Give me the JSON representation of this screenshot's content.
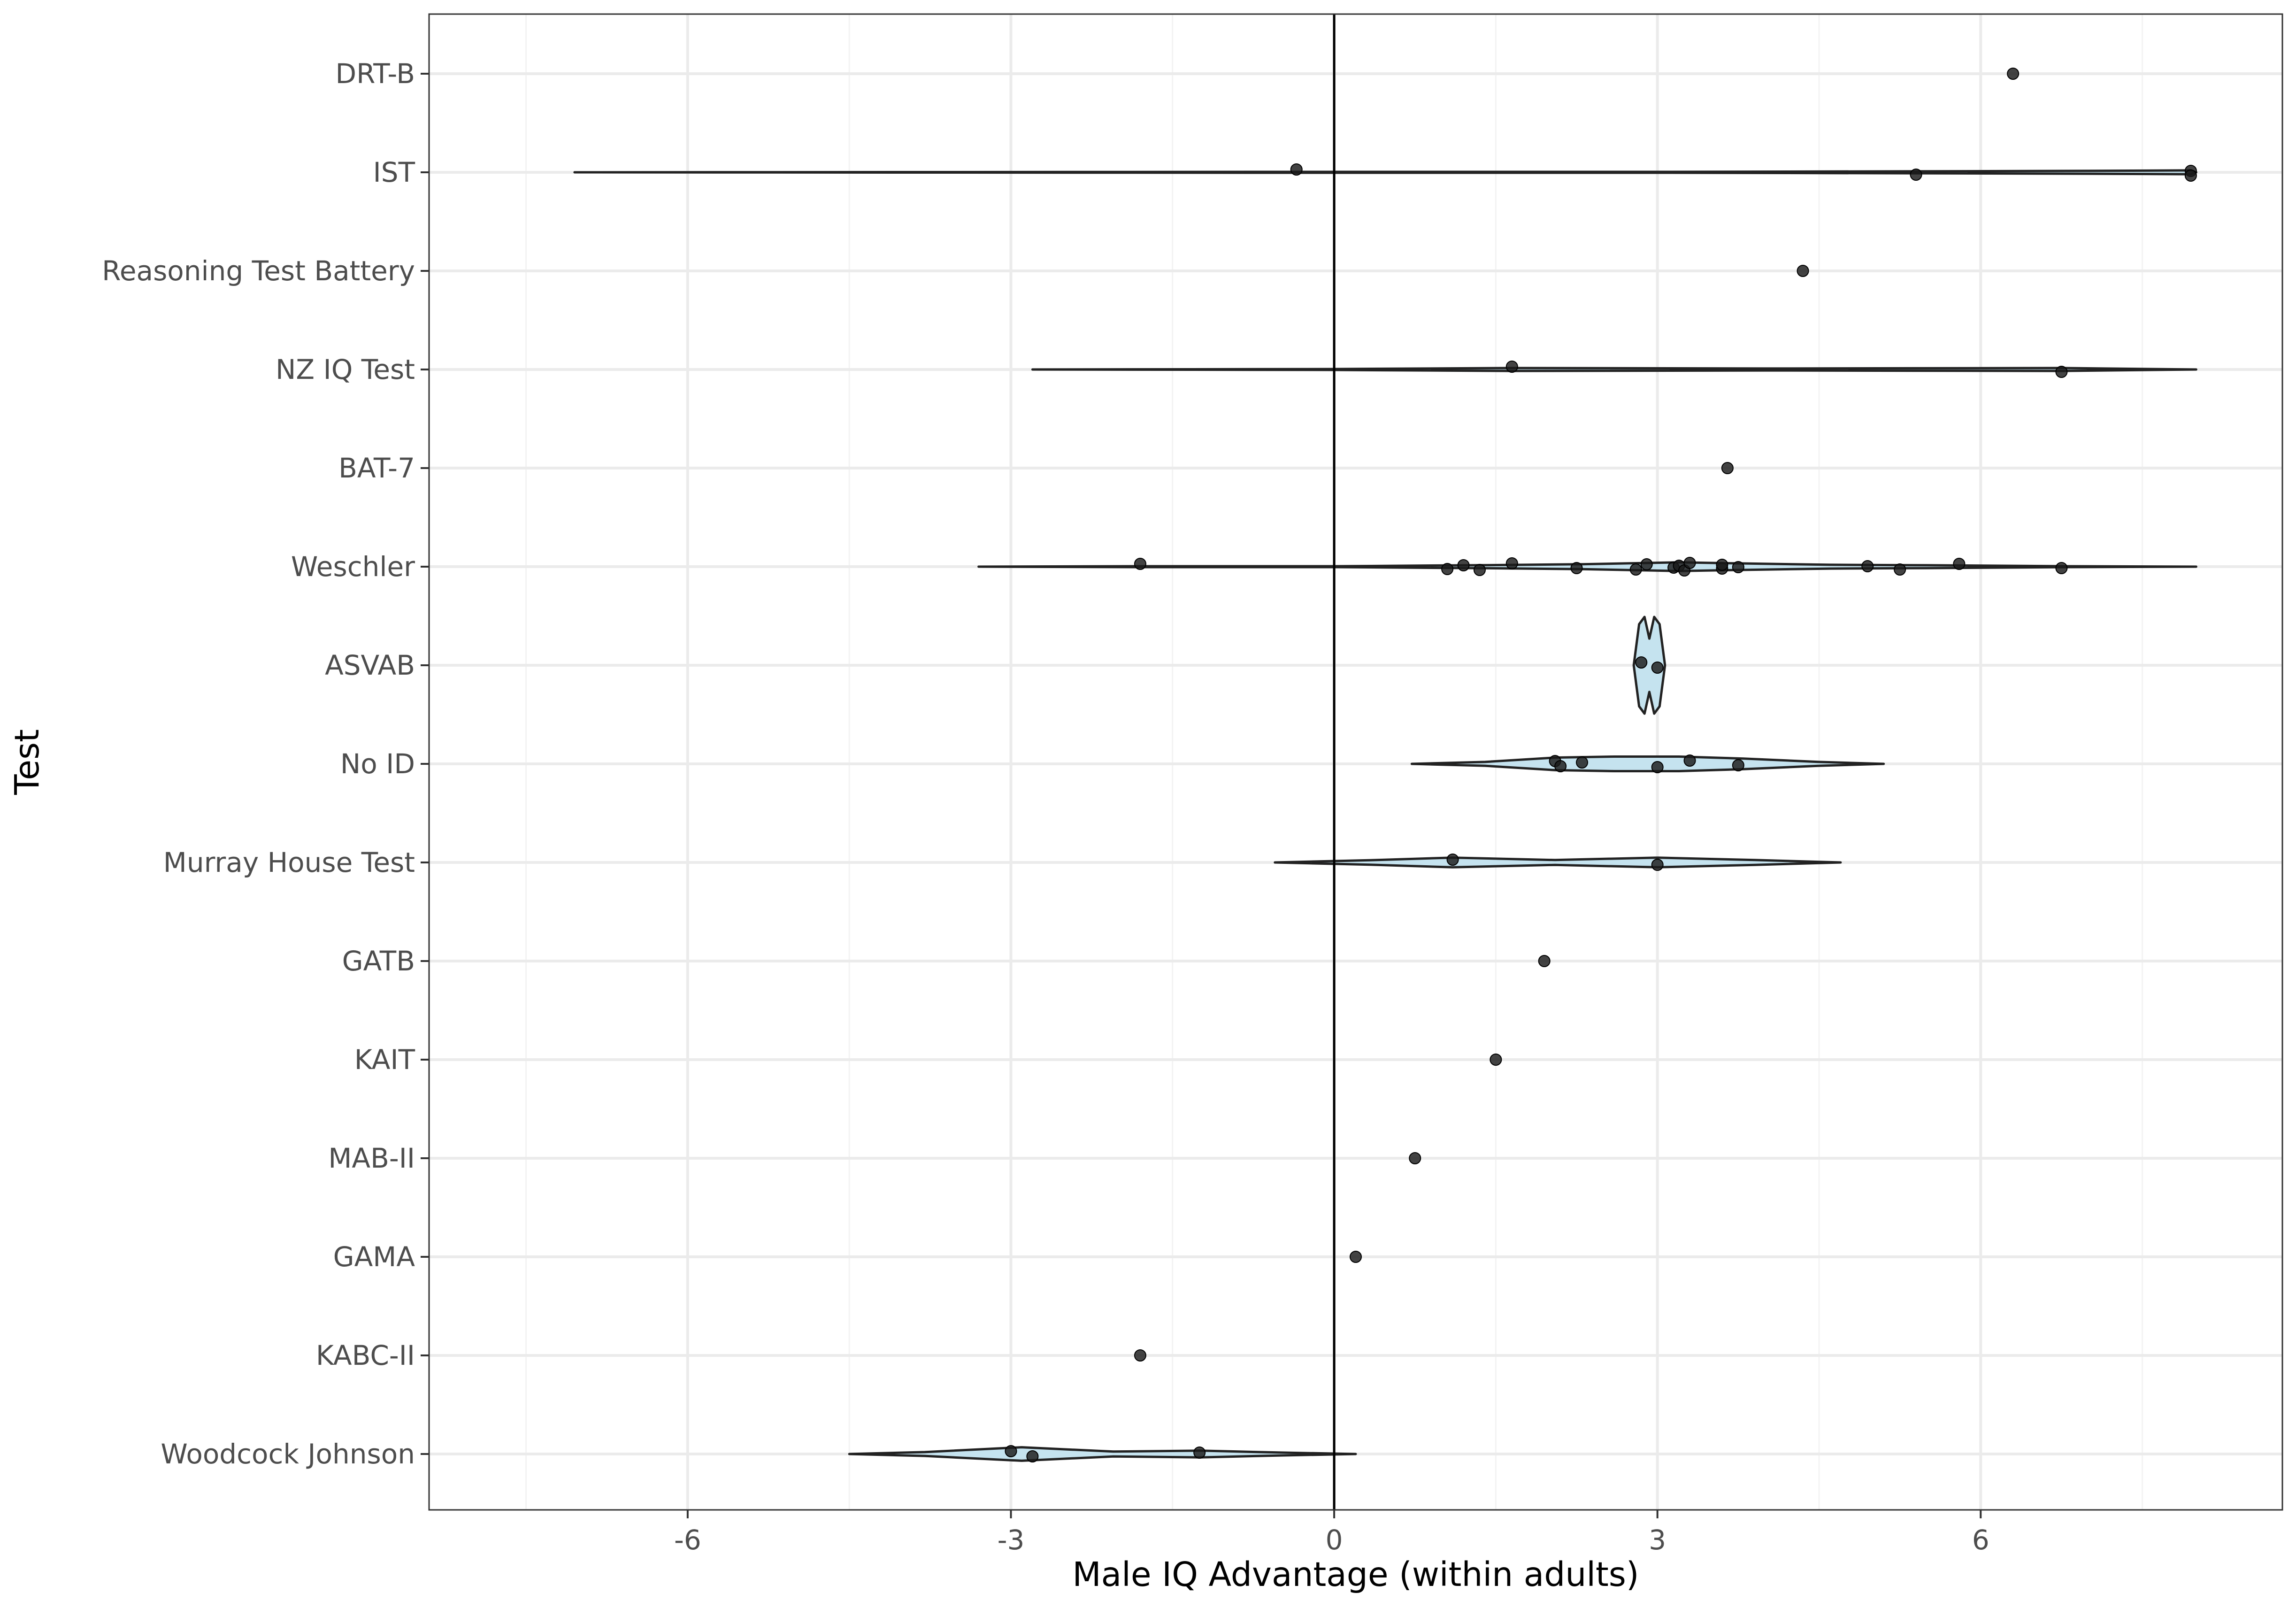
{
  "chart_data": {
    "type": "violin",
    "xlabel": "Male IQ Advantage (within adults)",
    "ylabel": "Test",
    "xlim": [
      -8.4,
      8.8
    ],
    "x_ticks": [
      {
        "value": -6,
        "label": "-6"
      },
      {
        "value": -3,
        "label": "-3"
      },
      {
        "value": 0,
        "label": "0"
      },
      {
        "value": 3,
        "label": "3"
      },
      {
        "value": 6,
        "label": "6"
      }
    ],
    "reference_line_x": 0,
    "grid": true,
    "violin_fill": "#c5e3ef",
    "categories": [
      "DRT-B",
      "IST",
      "Reasoning Test Battery",
      "NZ IQ Test",
      "BAT-7",
      "Weschler",
      "ASVAB",
      "No ID",
      "Murray House Test",
      "GATB",
      "KAIT",
      "MAB-II",
      "GAMA",
      "KABC-II",
      "Woodcock Johnson"
    ],
    "series": [
      {
        "category": "DRT-B",
        "points": [
          6.3
        ],
        "violin": null
      },
      {
        "category": "IST",
        "points": [
          -0.35,
          5.4,
          7.95,
          7.95
        ],
        "violin": {
          "range": [
            -7.05,
            8.0
          ],
          "density": [
            [
              -7.05,
              0.0
            ],
            [
              -0.35,
              0.01
            ],
            [
              3.0,
              0.01
            ],
            [
              5.4,
              0.02
            ],
            [
              7.0,
              0.03
            ],
            [
              7.95,
              0.04
            ],
            [
              8.0,
              0.0
            ]
          ]
        }
      },
      {
        "category": "Reasoning Test Battery",
        "points": [
          4.35
        ],
        "violin": null
      },
      {
        "category": "NZ IQ Test",
        "points": [
          1.65,
          6.75
        ],
        "violin": {
          "range": [
            -2.8,
            8.0
          ],
          "density": [
            [
              -2.8,
              0.0
            ],
            [
              0.0,
              0.01
            ],
            [
              1.65,
              0.03
            ],
            [
              4.0,
              0.02
            ],
            [
              6.75,
              0.03
            ],
            [
              8.0,
              0.0
            ]
          ]
        }
      },
      {
        "category": "BAT-7",
        "points": [
          3.65
        ],
        "violin": null
      },
      {
        "category": "Weschler",
        "points": [
          -1.8,
          1.05,
          1.2,
          1.35,
          1.65,
          2.25,
          2.8,
          2.9,
          3.15,
          3.2,
          3.25,
          3.3,
          3.6,
          3.6,
          3.75,
          4.95,
          5.25,
          5.8,
          6.75
        ],
        "violin": {
          "range": [
            -3.3,
            8.0
          ],
          "density": [
            [
              -3.3,
              0.0
            ],
            [
              -1.8,
              0.01
            ],
            [
              0.0,
              0.01
            ],
            [
              1.3,
              0.03
            ],
            [
              2.3,
              0.05
            ],
            [
              3.2,
              0.09
            ],
            [
              3.7,
              0.07
            ],
            [
              4.6,
              0.04
            ],
            [
              5.5,
              0.03
            ],
            [
              6.8,
              0.01
            ],
            [
              8.0,
              0.0
            ]
          ]
        }
      },
      {
        "category": "ASVAB",
        "points": [
          2.85,
          3.0
        ],
        "violin": {
          "range": [
            2.78,
            3.07
          ],
          "density": [
            [
              2.78,
              0.0
            ],
            [
              2.83,
              0.85
            ],
            [
              2.88,
              1.0
            ],
            [
              2.925,
              0.55
            ],
            [
              2.97,
              1.0
            ],
            [
              3.02,
              0.85
            ],
            [
              3.07,
              0.0
            ]
          ]
        }
      },
      {
        "category": "No ID",
        "points": [
          2.05,
          2.1,
          2.3,
          3.0,
          3.3,
          3.75
        ],
        "violin": {
          "range": [
            0.72,
            5.1
          ],
          "density": [
            [
              0.72,
              0.0
            ],
            [
              1.4,
              0.04
            ],
            [
              2.05,
              0.13
            ],
            [
              2.6,
              0.15
            ],
            [
              3.2,
              0.15
            ],
            [
              3.8,
              0.11
            ],
            [
              4.5,
              0.04
            ],
            [
              5.1,
              0.0
            ]
          ]
        }
      },
      {
        "category": "Murray House Test",
        "points": [
          1.1,
          3.0
        ],
        "violin": {
          "range": [
            -0.55,
            4.7
          ],
          "density": [
            [
              -0.55,
              0.0
            ],
            [
              0.4,
              0.05
            ],
            [
              1.1,
              0.1
            ],
            [
              2.05,
              0.05
            ],
            [
              3.0,
              0.1
            ],
            [
              3.9,
              0.05
            ],
            [
              4.7,
              0.0
            ]
          ]
        }
      },
      {
        "category": "GATB",
        "points": [
          1.95
        ],
        "violin": null
      },
      {
        "category": "KAIT",
        "points": [
          1.5
        ],
        "violin": null
      },
      {
        "category": "MAB-II",
        "points": [
          0.75
        ],
        "violin": null
      },
      {
        "category": "GAMA",
        "points": [
          0.2
        ],
        "violin": null
      },
      {
        "category": "KABC-II",
        "points": [
          -1.8
        ],
        "violin": null
      },
      {
        "category": "Woodcock Johnson",
        "points": [
          -3.0,
          -2.8,
          -1.25
        ],
        "violin": {
          "range": [
            -4.5,
            0.2
          ],
          "density": [
            [
              -4.5,
              0.0
            ],
            [
              -3.8,
              0.04
            ],
            [
              -2.9,
              0.14
            ],
            [
              -2.05,
              0.05
            ],
            [
              -1.25,
              0.07
            ],
            [
              -0.5,
              0.03
            ],
            [
              0.2,
              0.0
            ]
          ]
        }
      }
    ]
  }
}
